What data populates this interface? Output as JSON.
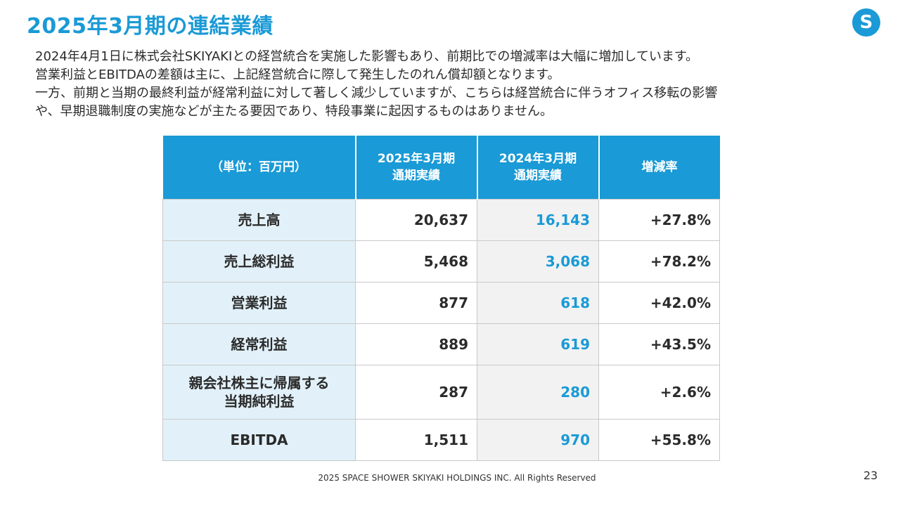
{
  "slide": {
    "title": "2025年3月期の連結業績",
    "logo_letter": "S",
    "description_lines": [
      "2024年4月1日に株式会社SKIYAKIとの経営統合を実施した影響もあり、前期比での増減率は大幅に増加しています。",
      "営業利益とEBITDAの差額は主に、上記経営統合に際して発生したのれん償却額となります。",
      "一方、前期と当期の最終利益が経常利益に対して著しく減少していますが、こちらは経営統合に伴うオフィス移転の影響",
      "や、早期退職制度の実施などが主たる要因であり、特段事業に起因するものはありません。"
    ],
    "footer": "2025 SPACE SHOWER SKIYAKI HOLDINGS INC. All Rights Reserved",
    "page_number": "23"
  },
  "table": {
    "header": {
      "unit": "（単位：百万円）",
      "current_line1": "2025年3月期",
      "current_line2": "通期実績",
      "previous_line1": "2024年3月期",
      "previous_line2": "通期実績",
      "rate": "増減率"
    },
    "rows": [
      {
        "label_line1": "売上高",
        "label_line2": "",
        "current": "20,637",
        "previous": "16,143",
        "rate": "+27.8%"
      },
      {
        "label_line1": "売上総利益",
        "label_line2": "",
        "current": "5,468",
        "previous": "3,068",
        "rate": "+78.2%"
      },
      {
        "label_line1": "営業利益",
        "label_line2": "",
        "current": "877",
        "previous": "618",
        "rate": "+42.0%"
      },
      {
        "label_line1": "経常利益",
        "label_line2": "",
        "current": "889",
        "previous": "619",
        "rate": "+43.5%"
      },
      {
        "label_line1": "親会社株主に帰属する",
        "label_line2": "当期純利益",
        "current": "287",
        "previous": "280",
        "rate": "+2.6%"
      },
      {
        "label_line1": "EBITDA",
        "label_line2": "",
        "current": "1,511",
        "previous": "970",
        "rate": "+55.8%"
      }
    ]
  },
  "colors": {
    "accent": "#1a9ad6",
    "label_bg": "#e2f1f9",
    "previous_bg": "#f2f2f2"
  }
}
